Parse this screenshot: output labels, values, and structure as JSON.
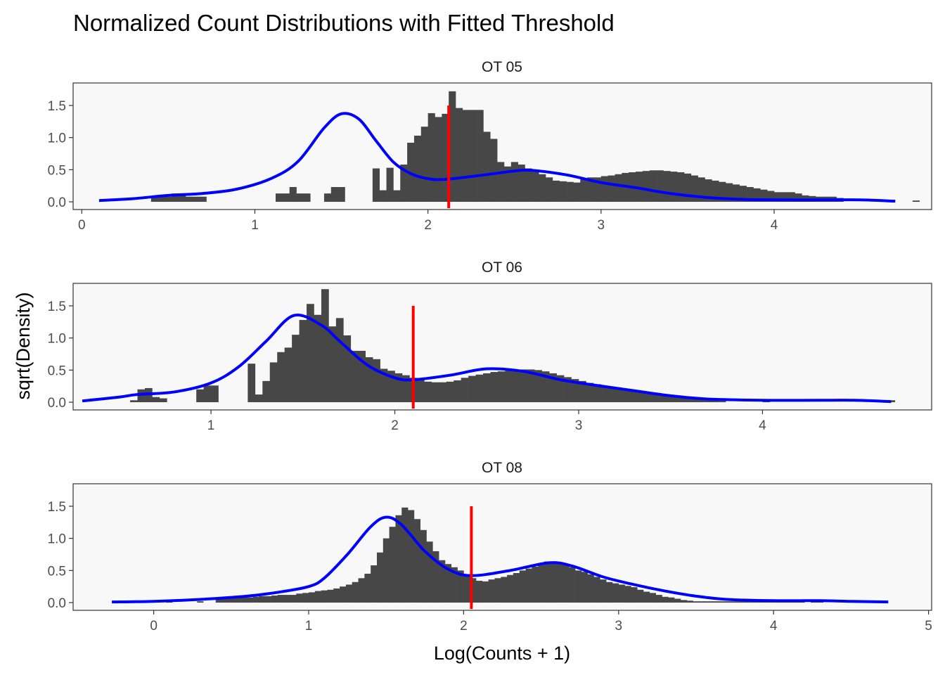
{
  "chart_data": {
    "type": "histogram",
    "title": "Normalized Count Distributions with Fitted Threshold",
    "xlabel": "Log(Counts + 1)",
    "ylabel": "sqrt(Density)",
    "ylim": [
      -0.12,
      1.85
    ],
    "yticks": [
      0.0,
      0.5,
      1.0,
      1.5
    ],
    "ytick_labels": [
      "0.0",
      "0.5",
      "1.0",
      "1.5"
    ],
    "colors": {
      "bars": "#474747",
      "fit": "#0000ff",
      "threshold": "#ff0000",
      "panel_bg": "#f8f8f8"
    },
    "facets": [
      {
        "label": "OT 05",
        "xlim": [
          -0.05,
          4.91
        ],
        "xticks": [
          0,
          1,
          2,
          3,
          4
        ],
        "xtick_labels": [
          "0",
          "1",
          "2",
          "3",
          "4"
        ],
        "threshold": 2.12,
        "threshold_range": [
          -0.1,
          1.5
        ],
        "bin_width": 0.04,
        "bin_start": 0.4,
        "bars": [
          0.08,
          0.08,
          0.08,
          0.13,
          0.13,
          0.08,
          0.08,
          0.08,
          0,
          0,
          0,
          0,
          0,
          0,
          0,
          0,
          0,
          0,
          0.13,
          0.13,
          0.23,
          0.13,
          0.13,
          0,
          0,
          0.13,
          0.23,
          0.23,
          0,
          0,
          0,
          0,
          0.52,
          0.18,
          0.53,
          0.18,
          0.58,
          0.92,
          1.03,
          1.17,
          1.38,
          1.32,
          1.37,
          1.72,
          1.46,
          1.43,
          1.43,
          1.43,
          1.09,
          0.98,
          0.62,
          0.55,
          0.62,
          0.58,
          0.52,
          0.49,
          0.43,
          0.38,
          0.33,
          0.32,
          0.31,
          0.3,
          0.35,
          0.38,
          0.38,
          0.4,
          0.41,
          0.43,
          0.45,
          0.46,
          0.47,
          0.48,
          0.49,
          0.49,
          0.48,
          0.47,
          0.46,
          0.44,
          0.41,
          0.38,
          0.35,
          0.33,
          0.31,
          0.29,
          0.27,
          0.25,
          0.23,
          0.21,
          0.19,
          0.17,
          0.15,
          0.15,
          0.15,
          0.13,
          0.1,
          0.09,
          0.08,
          0.08,
          0.08,
          0.06,
          0,
          0,
          0,
          0,
          0,
          0,
          0,
          0,
          0,
          0,
          0.02,
          0,
          0,
          0,
          0,
          0,
          0,
          0,
          0,
          0,
          0,
          0,
          0,
          0,
          0,
          0,
          0,
          0,
          0,
          0,
          0,
          0,
          0,
          0,
          0,
          0,
          0,
          0,
          0,
          0,
          0.02
        ],
        "fit": [
          [
            0.1,
            0.02
          ],
          [
            0.3,
            0.05
          ],
          [
            0.5,
            0.1
          ],
          [
            0.7,
            0.13
          ],
          [
            0.9,
            0.2
          ],
          [
            1.1,
            0.37
          ],
          [
            1.25,
            0.63
          ],
          [
            1.4,
            1.15
          ],
          [
            1.5,
            1.37
          ],
          [
            1.6,
            1.29
          ],
          [
            1.7,
            0.95
          ],
          [
            1.8,
            0.62
          ],
          [
            1.9,
            0.44
          ],
          [
            2.0,
            0.36
          ],
          [
            2.1,
            0.35
          ],
          [
            2.3,
            0.41
          ],
          [
            2.5,
            0.48
          ],
          [
            2.6,
            0.49
          ],
          [
            2.8,
            0.42
          ],
          [
            3.0,
            0.3
          ],
          [
            3.2,
            0.22
          ],
          [
            3.4,
            0.13
          ],
          [
            3.6,
            0.07
          ],
          [
            3.8,
            0.04
          ],
          [
            4.0,
            0.03
          ],
          [
            4.3,
            0.03
          ],
          [
            4.5,
            0.03
          ],
          [
            4.7,
            0.01
          ]
        ]
      },
      {
        "label": "OT 06",
        "xlim": [
          0.25,
          4.92
        ],
        "xticks": [
          1,
          2,
          3,
          4
        ],
        "xtick_labels": [
          "1",
          "2",
          "3",
          "4"
        ],
        "threshold": 2.1,
        "threshold_range": [
          -0.1,
          1.5
        ],
        "bin_width": 0.04,
        "bin_start": 0.56,
        "bars": [
          0.03,
          0.2,
          0.22,
          0.08,
          0.06,
          0,
          0,
          0,
          0,
          0.2,
          0.26,
          0.26,
          0,
          0,
          0,
          0,
          0.6,
          0.12,
          0.33,
          0.62,
          0.78,
          0.85,
          1.05,
          1.28,
          1.53,
          1.36,
          1.76,
          1.18,
          1.31,
          1.04,
          0.8,
          0.8,
          0.7,
          0.67,
          0.52,
          0.49,
          0.45,
          0.42,
          0.38,
          0.35,
          0.32,
          0.31,
          0.31,
          0.32,
          0.34,
          0.38,
          0.41,
          0.43,
          0.45,
          0.47,
          0.48,
          0.49,
          0.5,
          0.51,
          0.51,
          0.5,
          0.48,
          0.45,
          0.42,
          0.39,
          0.36,
          0.33,
          0.3,
          0.28,
          0.25,
          0.23,
          0.21,
          0.2,
          0.18,
          0.16,
          0.15,
          0.13,
          0.12,
          0.1,
          0.09,
          0.07,
          0.06,
          0.05,
          0.04,
          0.03,
          0.02,
          0,
          0,
          0,
          0,
          0,
          0.03,
          0,
          0,
          0,
          0,
          0,
          0,
          0,
          0,
          0,
          0,
          0,
          0,
          0,
          0,
          0,
          0,
          0.03
        ],
        "fit": [
          [
            0.3,
            0.02
          ],
          [
            0.5,
            0.08
          ],
          [
            0.6,
            0.12
          ],
          [
            0.8,
            0.16
          ],
          [
            1.0,
            0.3
          ],
          [
            1.15,
            0.55
          ],
          [
            1.3,
            0.95
          ],
          [
            1.45,
            1.35
          ],
          [
            1.6,
            1.2
          ],
          [
            1.7,
            0.95
          ],
          [
            1.85,
            0.58
          ],
          [
            2.0,
            0.38
          ],
          [
            2.1,
            0.35
          ],
          [
            2.3,
            0.42
          ],
          [
            2.5,
            0.52
          ],
          [
            2.7,
            0.48
          ],
          [
            2.9,
            0.35
          ],
          [
            3.1,
            0.26
          ],
          [
            3.3,
            0.18
          ],
          [
            3.5,
            0.1
          ],
          [
            3.7,
            0.05
          ],
          [
            4.0,
            0.03
          ],
          [
            4.3,
            0.03
          ],
          [
            4.5,
            0.03
          ],
          [
            4.7,
            0.01
          ]
        ]
      },
      {
        "label": "OT 08",
        "xlim": [
          -0.52,
          5.02
        ],
        "xticks": [
          0,
          1,
          2,
          3,
          4,
          5
        ],
        "xtick_labels": [
          "0",
          "1",
          "2",
          "3",
          "4",
          "5"
        ],
        "threshold": 2.05,
        "threshold_range": [
          -0.1,
          1.5
        ],
        "bin_width": 0.04,
        "bin_start": 0.08,
        "bars": [
          0.02,
          0,
          0,
          0,
          0,
          0.02,
          0,
          0,
          0.07,
          0.07,
          0.07,
          0.08,
          0.08,
          0.08,
          0.09,
          0.1,
          0.1,
          0.11,
          0.12,
          0.12,
          0.12,
          0.14,
          0.15,
          0.16,
          0.18,
          0.19,
          0.2,
          0.22,
          0.25,
          0.28,
          0.32,
          0.38,
          0.45,
          0.58,
          0.78,
          1.0,
          1.18,
          1.36,
          1.48,
          1.44,
          1.3,
          1.13,
          0.95,
          0.8,
          0.66,
          0.6,
          0.55,
          0.5,
          0.44,
          0.38,
          0.34,
          0.33,
          0.36,
          0.38,
          0.4,
          0.43,
          0.46,
          0.5,
          0.53,
          0.56,
          0.6,
          0.64,
          0.64,
          0.63,
          0.6,
          0.55,
          0.5,
          0.48,
          0.44,
          0.4,
          0.36,
          0.32,
          0.3,
          0.28,
          0.26,
          0.24,
          0.2,
          0.17,
          0.15,
          0.12,
          0.09,
          0.08,
          0.06,
          0.04,
          0.03,
          0.02,
          0.02,
          0.02,
          0.02,
          0.02,
          0.02,
          0.02,
          0.02,
          0.02,
          0.02,
          0.02,
          0.02,
          0.02,
          0.02,
          0.02,
          0.02,
          0.02,
          0.02,
          0,
          0.02,
          0.02
        ],
        "fit": [
          [
            -0.27,
            0.01
          ],
          [
            0.0,
            0.02
          ],
          [
            0.3,
            0.05
          ],
          [
            0.6,
            0.1
          ],
          [
            0.8,
            0.16
          ],
          [
            1.0,
            0.25
          ],
          [
            1.1,
            0.38
          ],
          [
            1.25,
            0.75
          ],
          [
            1.4,
            1.18
          ],
          [
            1.5,
            1.33
          ],
          [
            1.6,
            1.21
          ],
          [
            1.75,
            0.8
          ],
          [
            1.9,
            0.52
          ],
          [
            2.05,
            0.42
          ],
          [
            2.3,
            0.5
          ],
          [
            2.55,
            0.62
          ],
          [
            2.7,
            0.57
          ],
          [
            2.9,
            0.4
          ],
          [
            3.1,
            0.28
          ],
          [
            3.3,
            0.18
          ],
          [
            3.5,
            0.1
          ],
          [
            3.7,
            0.05
          ],
          [
            4.0,
            0.03
          ],
          [
            4.3,
            0.03
          ],
          [
            4.5,
            0.02
          ],
          [
            4.74,
            0.01
          ]
        ]
      }
    ]
  }
}
